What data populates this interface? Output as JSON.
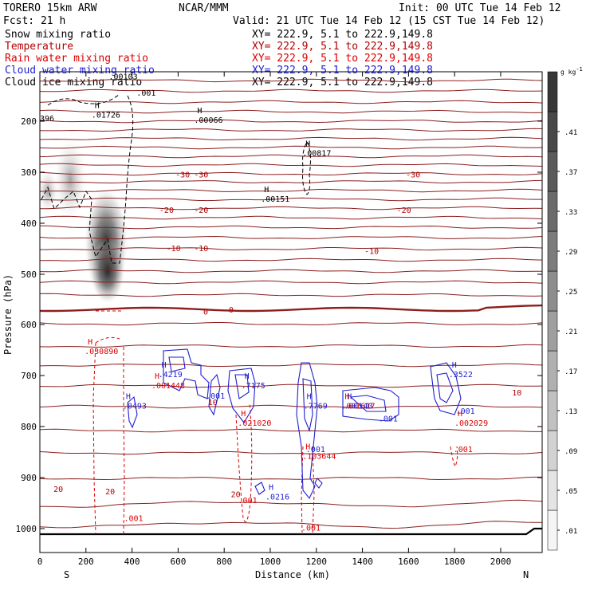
{
  "header": {
    "model": "TORERO   15km ARW",
    "center": "NCAR/MMM",
    "init": "Init: 00 UTC Tue 14 Feb 12",
    "fcst": "Fcst:    21 h",
    "valid": "Valid: 21 UTC Tue 14 Feb 12 (15 CST Tue 14 Feb 12)"
  },
  "legend": [
    {
      "label": "Snow mixing ratio",
      "xy": "XY= 222.9,  5.1 to 222.9,149.8",
      "color": "#000000"
    },
    {
      "label": "Temperature",
      "xy": "XY= 222.9,  5.1 to 222.9,149.8",
      "color": "#b40000"
    },
    {
      "label": "Rain water mixing ratio",
      "xy": "XY= 222.9,  5.1 to 222.9,149.8",
      "color": "#dc0000"
    },
    {
      "label": "Cloud water mixing ratio",
      "xy": "XY= 222.9,  5.1 to 222.9,149.8",
      "color": "#1e1ed2"
    },
    {
      "label": "Cloud ice mixing ratio",
      "xy": "XY= 222.9,  5.1 to 222.9,149.8",
      "color": "#000000"
    }
  ],
  "chart_data": {
    "type": "cross-section",
    "xlabel": "Distance (km)",
    "ylabel": "Pressure (hPa)",
    "xlim": [
      0,
      2180
    ],
    "ylim": [
      1045,
      100
    ],
    "x_ticks": [
      0,
      200,
      400,
      600,
      800,
      1000,
      1200,
      1400,
      1600,
      1800,
      2000
    ],
    "y_ticks": [
      200,
      300,
      400,
      500,
      600,
      700,
      800,
      900,
      1000
    ],
    "end_labels": {
      "left": "S",
      "right": "N"
    },
    "colorbar": {
      "unit": "g kg",
      "unit_exponent": "-1",
      "ticks": [
        ".01",
        ".05",
        ".09",
        ".13",
        ".17",
        ".21",
        ".25",
        ".29",
        ".33",
        ".37",
        ".41"
      ]
    },
    "temperature_isotherm_labels": [
      {
        "x": 620,
        "p": 310,
        "text": "-30"
      },
      {
        "x": 700,
        "p": 310,
        "text": "-30"
      },
      {
        "x": 1620,
        "p": 310,
        "text": "-30"
      },
      {
        "x": 550,
        "p": 380,
        "text": "-20"
      },
      {
        "x": 700,
        "p": 380,
        "text": "-20"
      },
      {
        "x": 1580,
        "p": 380,
        "text": "-20"
      },
      {
        "x": 580,
        "p": 455,
        "text": "-10"
      },
      {
        "x": 700,
        "p": 455,
        "text": "-10"
      },
      {
        "x": 1440,
        "p": 460,
        "text": "-10"
      },
      {
        "x": 720,
        "p": 580,
        "text": "0"
      },
      {
        "x": 830,
        "p": 576,
        "text": "0"
      },
      {
        "x": 2070,
        "p": 739,
        "text": "10"
      },
      {
        "x": 750,
        "p": 758,
        "text": "10"
      },
      {
        "x": 80,
        "p": 928,
        "text": "20"
      },
      {
        "x": 305,
        "p": 933,
        "text": "20"
      },
      {
        "x": 850,
        "p": 938,
        "text": "20"
      }
    ],
    "maxima": [
      {
        "x": 320,
        "p": 115,
        "value": ".00103",
        "color": "#000000"
      },
      {
        "x": 245,
        "p": 190,
        "value": ".01726",
        "color": "#000000"
      },
      {
        "x": 690,
        "p": 200,
        "value": ".00066",
        "color": "#000000"
      },
      {
        "x": 1160,
        "p": 265,
        "value": ".00817",
        "color": "#000000"
      },
      {
        "x": 980,
        "p": 355,
        "value": ".00151",
        "color": "#000000"
      },
      {
        "x": 215,
        "p": 655,
        "value": ".030890",
        "color": "#dc0000"
      },
      {
        "x": 535,
        "p": 700,
        "value": ".4219",
        "color": "#1e1ed2"
      },
      {
        "x": 505,
        "p": 722,
        "value": ".001448",
        "color": "#dc0000"
      },
      {
        "x": 895,
        "p": 722,
        "value": ".7175",
        "color": "#1e1ed2"
      },
      {
        "x": 380,
        "p": 762,
        "value": ".0493",
        "color": "#1e1ed2"
      },
      {
        "x": 1165,
        "p": 762,
        "value": ".7769",
        "color": "#1e1ed2"
      },
      {
        "x": 1330,
        "p": 762,
        "value": ".001617",
        "color": "#dc0000"
      },
      {
        "x": 1340,
        "p": 762,
        "value": ".00140",
        "color": "#1e1ed2"
      },
      {
        "x": 880,
        "p": 795,
        "value": ".021020",
        "color": "#dc0000"
      },
      {
        "x": 1795,
        "p": 700,
        "value": ".3522",
        "color": "#1e1ed2"
      },
      {
        "x": 1820,
        "p": 795,
        "value": ".002029",
        "color": "#dc0000"
      },
      {
        "x": 1160,
        "p": 860,
        "value": ".103644",
        "color": "#dc0000"
      },
      {
        "x": 1000,
        "p": 940,
        "value": ".0216",
        "color": "#1e1ed2"
      }
    ],
    "contour_labels": [
      {
        "x": 420,
        "p": 150,
        "text": ".001",
        "color": "#000000"
      },
      {
        "x": 720,
        "p": 745,
        "text": ".001",
        "color": "#1e1ed2"
      },
      {
        "x": 1470,
        "p": 790,
        "text": ".001",
        "color": "#1e1ed2"
      },
      {
        "x": 1805,
        "p": 775,
        "text": ".001",
        "color": "#1e1ed2"
      },
      {
        "x": 1155,
        "p": 850,
        "text": ".001",
        "color": "#1e1ed2"
      },
      {
        "x": 860,
        "p": 950,
        "text": ".001",
        "color": "#dc0000"
      },
      {
        "x": 365,
        "p": 985,
        "text": ".001",
        "color": "#dc0000"
      },
      {
        "x": 1795,
        "p": 850,
        "text": ".001",
        "color": "#dc0000"
      },
      {
        "x": 1135,
        "p": 1004,
        "text": ".001",
        "color": "#dc0000"
      },
      {
        "x": 0,
        "p": 200,
        "text": "396",
        "color": "#000000"
      }
    ]
  }
}
